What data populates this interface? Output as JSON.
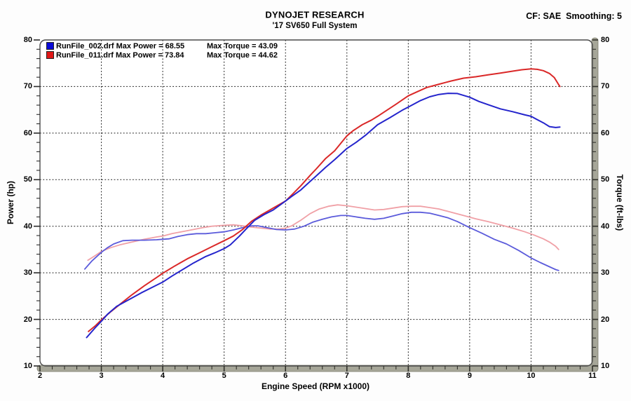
{
  "chart_data": {
    "type": "line",
    "title": "DYNOJET RESEARCH",
    "subtitle": "'17 SV650 Full System",
    "correction_label": "CF: SAE  Smoothing: 5",
    "xlabel": "Engine Speed (RPM x1000)",
    "ylabel_left": "Power (hp)",
    "ylabel_right": "Torque (ft-lbs)",
    "xlim": [
      2,
      11
    ],
    "ylim": [
      10,
      80
    ],
    "x_major_ticks": [
      2,
      3,
      4,
      5,
      6,
      7,
      8,
      9,
      10,
      11
    ],
    "x_minor_step": 0.2,
    "y_major_ticks": [
      10,
      20,
      30,
      40,
      50,
      60,
      70,
      80
    ],
    "y_minor_step": 2,
    "grid": "dotted-black-at-major-ticks",
    "frame_bar_color": "#a6a698",
    "frame_line_color": "#4a4a4a",
    "legend_position": "top-left",
    "legend": [
      {
        "label": "RunFile_002.drf Max Power = 68.55",
        "torque_label": "Max Torque = 43.09",
        "max_power": 68.55,
        "max_torque": 43.09,
        "color": "#0a0ad8"
      },
      {
        "label": "RunFile_011.drf Max Power = 73.84",
        "torque_label": "Max Torque = 44.62",
        "max_power": 73.84,
        "max_torque": 44.62,
        "color": "#e01818"
      }
    ],
    "series": [
      {
        "name": "RunFile_011 Torque (ft-lbs)",
        "color": "#f0a0a6",
        "width": 1.8,
        "points": [
          [
            2.78,
            32.7
          ],
          [
            2.9,
            33.7
          ],
          [
            3.0,
            34.6
          ],
          [
            3.15,
            35.4
          ],
          [
            3.3,
            36.0
          ],
          [
            3.5,
            36.6
          ],
          [
            3.7,
            37.2
          ],
          [
            3.9,
            37.7
          ],
          [
            4.0,
            37.9
          ],
          [
            4.15,
            38.4
          ],
          [
            4.3,
            38.8
          ],
          [
            4.5,
            39.3
          ],
          [
            4.65,
            39.7
          ],
          [
            4.8,
            40.0
          ],
          [
            5.0,
            40.2
          ],
          [
            5.15,
            40.3
          ],
          [
            5.3,
            40.1
          ],
          [
            5.45,
            39.8
          ],
          [
            5.6,
            39.6
          ],
          [
            5.75,
            39.4
          ],
          [
            5.9,
            39.4
          ],
          [
            6.0,
            39.6
          ],
          [
            6.1,
            40.1
          ],
          [
            6.25,
            41.3
          ],
          [
            6.4,
            42.7
          ],
          [
            6.55,
            43.7
          ],
          [
            6.7,
            44.3
          ],
          [
            6.85,
            44.6
          ],
          [
            7.0,
            44.4
          ],
          [
            7.15,
            44.1
          ],
          [
            7.3,
            43.8
          ],
          [
            7.45,
            43.5
          ],
          [
            7.6,
            43.6
          ],
          [
            7.75,
            43.9
          ],
          [
            7.9,
            44.2
          ],
          [
            8.05,
            44.3
          ],
          [
            8.2,
            44.3
          ],
          [
            8.35,
            44.0
          ],
          [
            8.5,
            43.7
          ],
          [
            8.7,
            43.0
          ],
          [
            8.9,
            42.3
          ],
          [
            9.1,
            41.6
          ],
          [
            9.3,
            41.0
          ],
          [
            9.5,
            40.3
          ],
          [
            9.7,
            39.6
          ],
          [
            9.9,
            38.8
          ],
          [
            10.05,
            38.1
          ],
          [
            10.2,
            37.3
          ],
          [
            10.3,
            36.6
          ],
          [
            10.4,
            35.7
          ],
          [
            10.45,
            35.0
          ]
        ]
      },
      {
        "name": "RunFile_002 Torque (ft-lbs)",
        "color": "#5b5bdb",
        "width": 1.8,
        "points": [
          [
            2.73,
            30.8
          ],
          [
            2.85,
            32.6
          ],
          [
            3.0,
            34.4
          ],
          [
            3.1,
            35.4
          ],
          [
            3.2,
            36.2
          ],
          [
            3.35,
            36.9
          ],
          [
            3.5,
            37.0
          ],
          [
            3.7,
            37.0
          ],
          [
            3.9,
            37.1
          ],
          [
            4.0,
            37.2
          ],
          [
            4.1,
            37.3
          ],
          [
            4.25,
            37.8
          ],
          [
            4.4,
            38.2
          ],
          [
            4.55,
            38.4
          ],
          [
            4.7,
            38.4
          ],
          [
            4.85,
            38.6
          ],
          [
            5.0,
            38.8
          ],
          [
            5.15,
            39.2
          ],
          [
            5.3,
            39.7
          ],
          [
            5.45,
            40.1
          ],
          [
            5.55,
            40.1
          ],
          [
            5.7,
            39.7
          ],
          [
            5.85,
            39.3
          ],
          [
            6.0,
            39.2
          ],
          [
            6.15,
            39.4
          ],
          [
            6.3,
            40.0
          ],
          [
            6.45,
            40.9
          ],
          [
            6.6,
            41.5
          ],
          [
            6.75,
            42.0
          ],
          [
            6.9,
            42.3
          ],
          [
            7.0,
            42.3
          ],
          [
            7.15,
            42.0
          ],
          [
            7.3,
            41.7
          ],
          [
            7.45,
            41.5
          ],
          [
            7.6,
            41.7
          ],
          [
            7.75,
            42.2
          ],
          [
            7.9,
            42.7
          ],
          [
            8.05,
            43.0
          ],
          [
            8.2,
            43.0
          ],
          [
            8.35,
            42.8
          ],
          [
            8.5,
            42.3
          ],
          [
            8.65,
            41.8
          ],
          [
            8.8,
            41.0
          ],
          [
            9.0,
            39.7
          ],
          [
            9.2,
            38.5
          ],
          [
            9.4,
            37.2
          ],
          [
            9.6,
            36.2
          ],
          [
            9.8,
            34.8
          ],
          [
            10.0,
            33.2
          ],
          [
            10.15,
            32.2
          ],
          [
            10.3,
            31.3
          ],
          [
            10.4,
            30.7
          ],
          [
            10.45,
            30.5
          ]
        ]
      },
      {
        "name": "RunFile_011 Power (hp)",
        "color": "#da2828",
        "width": 2,
        "points": [
          [
            2.79,
            17.4
          ],
          [
            2.9,
            18.6
          ],
          [
            3.0,
            19.9
          ],
          [
            3.15,
            21.6
          ],
          [
            3.3,
            23.2
          ],
          [
            3.5,
            25.3
          ],
          [
            3.7,
            27.2
          ],
          [
            3.9,
            29.0
          ],
          [
            4.0,
            29.9
          ],
          [
            4.2,
            31.5
          ],
          [
            4.4,
            33.0
          ],
          [
            4.6,
            34.3
          ],
          [
            4.8,
            35.6
          ],
          [
            5.0,
            36.9
          ],
          [
            5.15,
            37.9
          ],
          [
            5.3,
            39.3
          ],
          [
            5.45,
            41.1
          ],
          [
            5.6,
            42.4
          ],
          [
            5.8,
            43.9
          ],
          [
            6.0,
            45.4
          ],
          [
            6.1,
            46.7
          ],
          [
            6.25,
            48.7
          ],
          [
            6.4,
            50.9
          ],
          [
            6.5,
            52.3
          ],
          [
            6.65,
            54.5
          ],
          [
            6.8,
            56.2
          ],
          [
            7.0,
            59.4
          ],
          [
            7.1,
            60.5
          ],
          [
            7.25,
            61.8
          ],
          [
            7.4,
            62.8
          ],
          [
            7.5,
            63.6
          ],
          [
            7.65,
            64.9
          ],
          [
            7.8,
            66.2
          ],
          [
            8.0,
            68.0
          ],
          [
            8.15,
            68.9
          ],
          [
            8.3,
            69.8
          ],
          [
            8.5,
            70.5
          ],
          [
            8.7,
            71.2
          ],
          [
            8.9,
            71.8
          ],
          [
            9.1,
            72.1
          ],
          [
            9.3,
            72.5
          ],
          [
            9.5,
            72.9
          ],
          [
            9.7,
            73.3
          ],
          [
            9.85,
            73.6
          ],
          [
            10.0,
            73.8
          ],
          [
            10.1,
            73.7
          ],
          [
            10.2,
            73.4
          ],
          [
            10.3,
            72.8
          ],
          [
            10.38,
            71.9
          ],
          [
            10.44,
            70.6
          ],
          [
            10.47,
            70.0
          ]
        ]
      },
      {
        "name": "RunFile_002 Power (hp)",
        "color": "#2424cc",
        "width": 2,
        "points": [
          [
            2.76,
            16.1
          ],
          [
            2.9,
            18.2
          ],
          [
            3.0,
            19.6
          ],
          [
            3.1,
            21.1
          ],
          [
            3.25,
            22.8
          ],
          [
            3.4,
            23.9
          ],
          [
            3.5,
            24.6
          ],
          [
            3.65,
            25.7
          ],
          [
            3.8,
            26.7
          ],
          [
            4.0,
            28.0
          ],
          [
            4.15,
            29.3
          ],
          [
            4.3,
            30.5
          ],
          [
            4.5,
            32.1
          ],
          [
            4.7,
            33.5
          ],
          [
            4.85,
            34.3
          ],
          [
            5.0,
            35.2
          ],
          [
            5.1,
            36.0
          ],
          [
            5.25,
            37.9
          ],
          [
            5.35,
            39.3
          ],
          [
            5.5,
            41.3
          ],
          [
            5.65,
            42.5
          ],
          [
            5.8,
            43.5
          ],
          [
            6.0,
            45.4
          ],
          [
            6.1,
            46.4
          ],
          [
            6.25,
            47.8
          ],
          [
            6.4,
            49.6
          ],
          [
            6.5,
            50.8
          ],
          [
            6.65,
            52.6
          ],
          [
            6.8,
            54.3
          ],
          [
            7.0,
            56.7
          ],
          [
            7.15,
            58.0
          ],
          [
            7.3,
            59.5
          ],
          [
            7.5,
            61.8
          ],
          [
            7.7,
            63.3
          ],
          [
            7.9,
            64.9
          ],
          [
            8.0,
            65.6
          ],
          [
            8.2,
            67.0
          ],
          [
            8.35,
            67.8
          ],
          [
            8.5,
            68.3
          ],
          [
            8.65,
            68.55
          ],
          [
            8.8,
            68.5
          ],
          [
            9.0,
            67.7
          ],
          [
            9.15,
            66.8
          ],
          [
            9.3,
            66.1
          ],
          [
            9.5,
            65.2
          ],
          [
            9.7,
            64.6
          ],
          [
            9.9,
            63.9
          ],
          [
            10.0,
            63.6
          ],
          [
            10.1,
            62.9
          ],
          [
            10.2,
            62.2
          ],
          [
            10.3,
            61.4
          ],
          [
            10.4,
            61.2
          ],
          [
            10.47,
            61.3
          ]
        ]
      }
    ]
  }
}
